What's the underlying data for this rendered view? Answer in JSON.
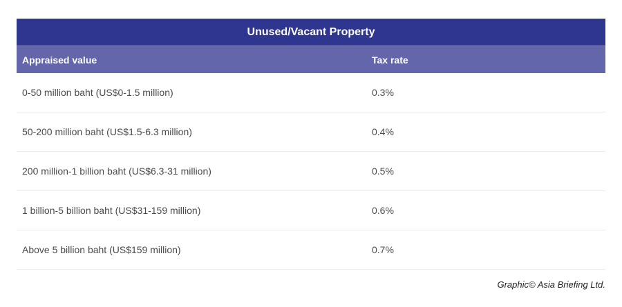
{
  "title": "Unused/Vacant Property",
  "headers": [
    "Appraised value",
    "Tax rate"
  ],
  "rows": [
    [
      "0-50 million baht (US$0-1.5 million)",
      "0.3%"
    ],
    [
      "50-200 million baht (US$1.5-6.3 million)",
      "0.4%"
    ],
    [
      "200 million-1 billion baht (US$6.3-31 million)",
      "0.5%"
    ],
    [
      "1 billion-5 billion baht (US$31-159 million)",
      "0.6%"
    ],
    [
      "Above 5 billion baht (US$159 million)",
      "0.7%"
    ]
  ],
  "credit": "Graphic© Asia Briefing Ltd.",
  "colors": {
    "title_bg": "#2e3690",
    "header_bg": "#6466ab"
  }
}
